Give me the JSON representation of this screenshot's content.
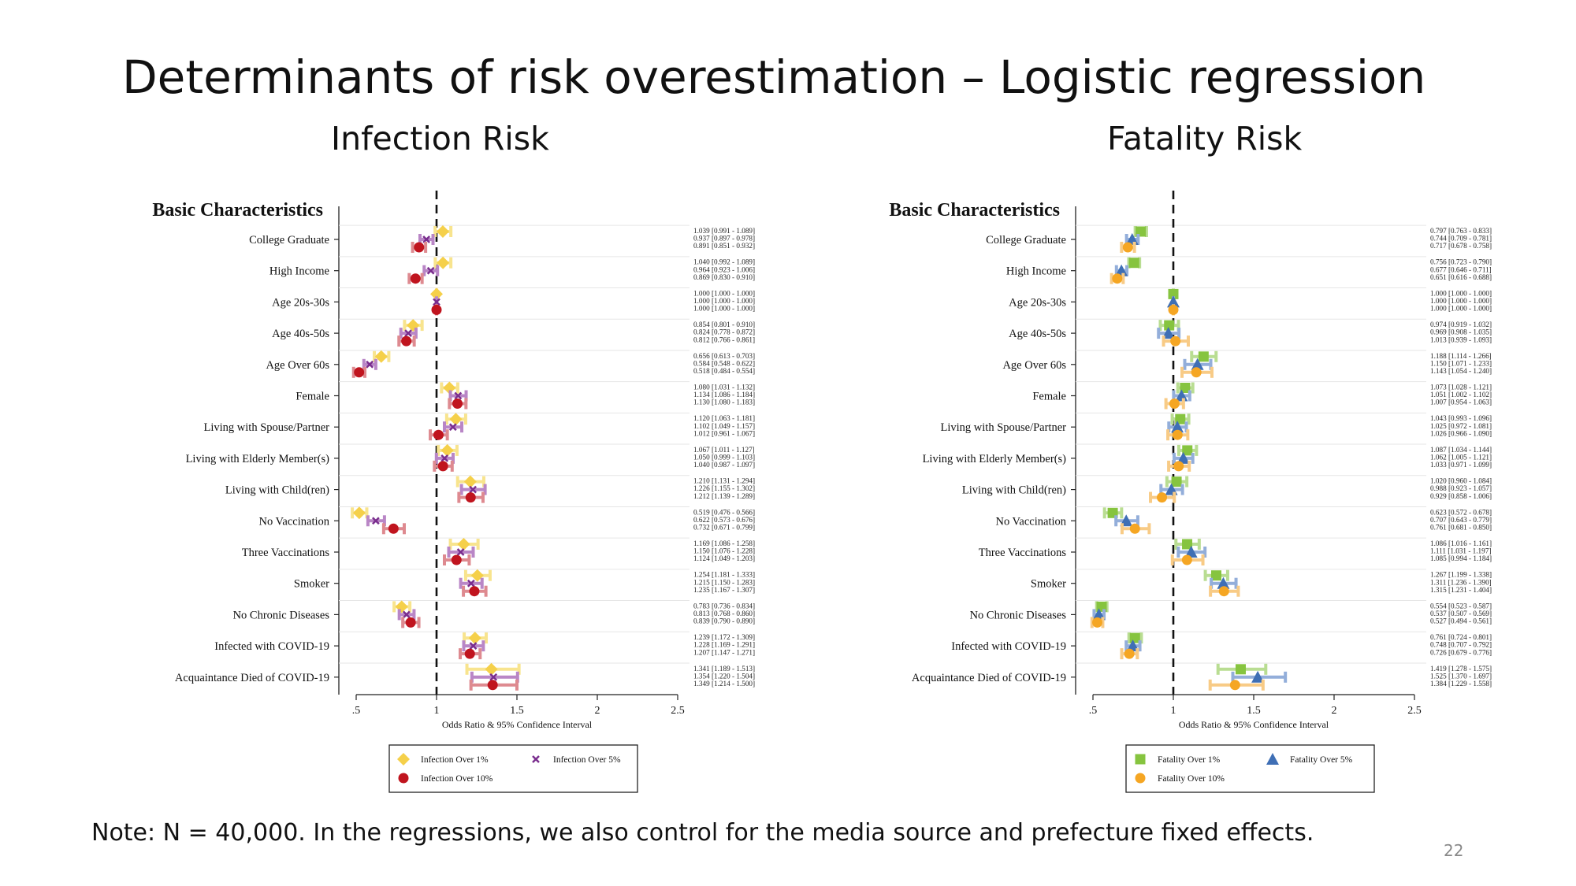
{
  "slide": {
    "title": "Determinants of risk overestimation – Logistic regression",
    "note": "Note: N = 40,000. In the regressions, we also control for the media source and prefecture fixed effects.",
    "page_number": "22"
  },
  "chart_data": [
    {
      "type": "forest",
      "title": "Infection Risk",
      "section_label": "Basic Characteristics",
      "xlabel": "Odds Ratio & 95% Confidence Interval",
      "xlim": [
        0.4,
        2.5
      ],
      "xticks": [
        0.5,
        1,
        1.5,
        2,
        2.5
      ],
      "xtick_labels": [
        ".5",
        "1",
        "1.5",
        "2",
        "2.5"
      ],
      "reference_line": 1,
      "categories": [
        "College Graduate",
        "High Income",
        "Age 20s-30s",
        "Age 40s-50s",
        "Age Over 60s",
        "Female",
        "Living with Spouse/Partner",
        "Living with Elderly Member(s)",
        "Living with Child(ren)",
        "No Vaccination",
        "Three Vaccinations",
        "Smoker",
        "No Chronic Diseases",
        "Infected with COVID-19",
        "Acquaintance Died of COVID-19"
      ],
      "legend_position": "bottom",
      "series": [
        {
          "name": "Infection Over 1%",
          "marker": "diamond",
          "color": "#F5D04A",
          "ci_color": "#F8E48E",
          "values": [
            1.039,
            1.04,
            1.0,
            0.854,
            0.656,
            1.08,
            1.12,
            1.067,
            1.21,
            0.519,
            1.169,
            1.254,
            0.783,
            1.239,
            1.341
          ],
          "lower": [
            0.991,
            0.992,
            1.0,
            0.801,
            0.613,
            1.031,
            1.063,
            1.011,
            1.131,
            0.476,
            1.086,
            1.181,
            0.736,
            1.172,
            1.189
          ],
          "upper": [
            1.089,
            1.089,
            1.0,
            0.91,
            0.703,
            1.132,
            1.181,
            1.127,
            1.294,
            0.566,
            1.258,
            1.333,
            0.834,
            1.309,
            1.513
          ]
        },
        {
          "name": "Infection Over 5%",
          "marker": "x",
          "color": "#7A2E8E",
          "ci_color": "#B986C6",
          "values": [
            0.937,
            0.964,
            1.0,
            0.824,
            0.584,
            1.134,
            1.102,
            1.05,
            1.226,
            0.622,
            1.15,
            1.215,
            0.813,
            1.228,
            1.354
          ],
          "lower": [
            0.897,
            0.923,
            1.0,
            0.778,
            0.548,
            1.086,
            1.049,
            0.999,
            1.155,
            0.573,
            1.076,
            1.15,
            0.768,
            1.169,
            1.22
          ],
          "upper": [
            0.978,
            1.006,
            1.0,
            0.872,
            0.622,
            1.184,
            1.157,
            1.103,
            1.302,
            0.676,
            1.228,
            1.283,
            0.86,
            1.291,
            1.504
          ]
        },
        {
          "name": "Infection Over 10%",
          "marker": "circle",
          "color": "#C0141E",
          "ci_color": "#DE8A90",
          "values": [
            0.891,
            0.869,
            1.0,
            0.812,
            0.518,
            1.13,
            1.012,
            1.04,
            1.212,
            0.732,
            1.124,
            1.235,
            0.839,
            1.207,
            1.349
          ],
          "lower": [
            0.851,
            0.83,
            1.0,
            0.766,
            0.484,
            1.08,
            0.961,
            0.987,
            1.139,
            0.671,
            1.049,
            1.167,
            0.79,
            1.147,
            1.214
          ],
          "upper": [
            0.932,
            0.91,
            1.0,
            0.861,
            0.554,
            1.183,
            1.067,
            1.097,
            1.289,
            0.799,
            1.203,
            1.307,
            0.89,
            1.271,
            1.5
          ]
        }
      ],
      "value_labels": [
        [
          "1.039 [0.991 - 1.089]",
          "0.937 [0.897 - 0.978]",
          "0.891 [0.851 - 0.932]"
        ],
        [
          "1.040 [0.992 - 1.089]",
          "0.964 [0.923 - 1.006]",
          "0.869 [0.830 - 0.910]"
        ],
        [
          "1.000 [1.000 - 1.000]",
          "1.000 [1.000 - 1.000]",
          "1.000 [1.000 - 1.000]"
        ],
        [
          "0.854 [0.801 - 0.910]",
          "0.824 [0.778 - 0.872]",
          "0.812 [0.766 - 0.861]"
        ],
        [
          "0.656 [0.613 - 0.703]",
          "0.584 [0.548 - 0.622]",
          "0.518 [0.484 - 0.554]"
        ],
        [
          "1.080 [1.031 - 1.132]",
          "1.134 [1.086 - 1.184]",
          "1.130 [1.080 - 1.183]"
        ],
        [
          "1.120 [1.063 - 1.181]",
          "1.102 [1.049 - 1.157]",
          "1.012 [0.961 - 1.067]"
        ],
        [
          "1.067 [1.011 - 1.127]",
          "1.050 [0.999 - 1.103]",
          "1.040 [0.987 - 1.097]"
        ],
        [
          "1.210 [1.131 - 1.294]",
          "1.226 [1.155 - 1.302]",
          "1.212 [1.139 - 1.289]"
        ],
        [
          "0.519 [0.476 - 0.566]",
          "0.622 [0.573 - 0.676]",
          "0.732 [0.671 - 0.799]"
        ],
        [
          "1.169 [1.086 - 1.258]",
          "1.150 [1.076 - 1.228]",
          "1.124 [1.049 - 1.203]"
        ],
        [
          "1.254 [1.181 - 1.333]",
          "1.215 [1.150 - 1.283]",
          "1.235 [1.167 - 1.307]"
        ],
        [
          "0.783 [0.736 - 0.834]",
          "0.813 [0.768 - 0.860]",
          "0.839 [0.790 - 0.890]"
        ],
        [
          "1.239 [1.172 - 1.309]",
          "1.228 [1.169 - 1.291]",
          "1.207 [1.147 - 1.271]"
        ],
        [
          "1.341 [1.189 - 1.513]",
          "1.354 [1.220 - 1.504]",
          "1.349 [1.214 - 1.500]"
        ]
      ]
    },
    {
      "type": "forest",
      "title": "Fatality Risk",
      "section_label": "Basic Characteristics",
      "xlabel": "Odds Ratio & 95% Confidence Interval",
      "xlim": [
        0.4,
        2.5
      ],
      "xticks": [
        0.5,
        1,
        1.5,
        2,
        2.5
      ],
      "xtick_labels": [
        ".5",
        "1",
        "1.5",
        "2",
        "2.5"
      ],
      "reference_line": 1,
      "categories": [
        "College Graduate",
        "High Income",
        "Age 20s-30s",
        "Age 40s-50s",
        "Age Over 60s",
        "Female",
        "Living with Spouse/Partner",
        "Living with Elderly Member(s)",
        "Living with Child(ren)",
        "No Vaccination",
        "Three Vaccinations",
        "Smoker",
        "No Chronic Diseases",
        "Infected with COVID-19",
        "Acquaintance Died of COVID-19"
      ],
      "legend_position": "bottom",
      "series": [
        {
          "name": "Fatality Over 1%",
          "marker": "square",
          "color": "#86C43F",
          "ci_color": "#B9DD92",
          "values": [
            0.797,
            0.756,
            1.0,
            0.974,
            1.188,
            1.073,
            1.043,
            1.087,
            1.02,
            0.623,
            1.086,
            1.267,
            0.554,
            0.761,
            1.419
          ],
          "lower": [
            0.763,
            0.723,
            1.0,
            0.919,
            1.114,
            1.028,
            0.993,
            1.034,
            0.96,
            0.572,
            1.016,
            1.199,
            0.523,
            0.724,
            1.278
          ],
          "upper": [
            0.833,
            0.79,
            1.0,
            1.032,
            1.266,
            1.121,
            1.096,
            1.144,
            1.084,
            0.678,
            1.161,
            1.338,
            0.587,
            0.801,
            1.575
          ]
        },
        {
          "name": "Fatality Over 5%",
          "marker": "triangle",
          "color": "#3F6FB5",
          "ci_color": "#93AEDA",
          "values": [
            0.744,
            0.677,
            1.0,
            0.969,
            1.15,
            1.051,
            1.025,
            1.062,
            0.988,
            0.707,
            1.111,
            1.311,
            0.537,
            0.748,
            1.525
          ],
          "lower": [
            0.709,
            0.646,
            1.0,
            0.908,
            1.071,
            1.002,
            0.972,
            1.005,
            0.923,
            0.643,
            1.031,
            1.236,
            0.507,
            0.707,
            1.37
          ],
          "upper": [
            0.781,
            0.711,
            1.0,
            1.035,
            1.233,
            1.102,
            1.081,
            1.121,
            1.057,
            0.779,
            1.197,
            1.39,
            0.569,
            0.792,
            1.697
          ]
        },
        {
          "name": "Fatality Over 10%",
          "marker": "circle",
          "color": "#F5A623",
          "ci_color": "#F8CB86",
          "values": [
            0.717,
            0.651,
            1.0,
            1.013,
            1.143,
            1.007,
            1.026,
            1.033,
            0.929,
            0.761,
            1.085,
            1.315,
            0.527,
            0.726,
            1.384
          ],
          "lower": [
            0.678,
            0.616,
            1.0,
            0.939,
            1.054,
            0.954,
            0.966,
            0.971,
            0.858,
            0.681,
            0.994,
            1.231,
            0.494,
            0.679,
            1.229
          ],
          "upper": [
            0.758,
            0.688,
            1.0,
            1.093,
            1.24,
            1.063,
            1.09,
            1.099,
            1.006,
            0.85,
            1.184,
            1.404,
            0.561,
            0.776,
            1.558
          ]
        }
      ],
      "value_labels": [
        [
          "0.797 [0.763 - 0.833]",
          "0.744 [0.709 - 0.781]",
          "0.717 [0.678 - 0.758]"
        ],
        [
          "0.756 [0.723 - 0.790]",
          "0.677 [0.646 - 0.711]",
          "0.651 [0.616 - 0.688]"
        ],
        [
          "1.000 [1.000 - 1.000]",
          "1.000 [1.000 - 1.000]",
          "1.000 [1.000 - 1.000]"
        ],
        [
          "0.974 [0.919 - 1.032]",
          "0.969 [0.908 - 1.035]",
          "1.013 [0.939 - 1.093]"
        ],
        [
          "1.188 [1.114 - 1.266]",
          "1.150 [1.071 - 1.233]",
          "1.143 [1.054 - 1.240]"
        ],
        [
          "1.073 [1.028 - 1.121]",
          "1.051 [1.002 - 1.102]",
          "1.007 [0.954 - 1.063]"
        ],
        [
          "1.043 [0.993 - 1.096]",
          "1.025 [0.972 - 1.081]",
          "1.026 [0.966 - 1.090]"
        ],
        [
          "1.087 [1.034 - 1.144]",
          "1.062 [1.005 - 1.121]",
          "1.033 [0.971 - 1.099]"
        ],
        [
          "1.020 [0.960 - 1.084]",
          "0.988 [0.923 - 1.057]",
          "0.929 [0.858 - 1.006]"
        ],
        [
          "0.623 [0.572 - 0.678]",
          "0.707 [0.643 - 0.779]",
          "0.761 [0.681 - 0.850]"
        ],
        [
          "1.086 [1.016 - 1.161]",
          "1.111 [1.031 - 1.197]",
          "1.085 [0.994 - 1.184]"
        ],
        [
          "1.267 [1.199 - 1.338]",
          "1.311 [1.236 - 1.390]",
          "1.315 [1.231 - 1.404]"
        ],
        [
          "0.554 [0.523 - 0.587]",
          "0.537 [0.507 - 0.569]",
          "0.527 [0.494 - 0.561]"
        ],
        [
          "0.761 [0.724 - 0.801]",
          "0.748 [0.707 - 0.792]",
          "0.726 [0.679 - 0.776]"
        ],
        [
          "1.419 [1.278 - 1.575]",
          "1.525 [1.370 - 1.697]",
          "1.384 [1.229 - 1.558]"
        ]
      ]
    }
  ]
}
